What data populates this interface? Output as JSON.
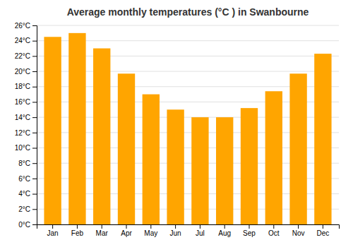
{
  "chart_data": {
    "type": "bar",
    "title": "Average monthly temperatures (°C ) in Swanbourne",
    "categories": [
      "Jan",
      "Feb",
      "Mar",
      "Apr",
      "May",
      "Jun",
      "Jul",
      "Aug",
      "Sep",
      "Oct",
      "Nov",
      "Dec"
    ],
    "values": [
      24.5,
      25.0,
      23.0,
      19.7,
      17.0,
      15.0,
      14.0,
      14.0,
      15.2,
      17.4,
      19.7,
      22.3
    ],
    "color": "#FFA500",
    "ylim": [
      0,
      26
    ],
    "yticks": [
      {
        "value": 0,
        "label": "0°C"
      },
      {
        "value": 2,
        "label": "2°C"
      },
      {
        "value": 4,
        "label": "4°C"
      },
      {
        "value": 6,
        "label": "6°C"
      },
      {
        "value": 8,
        "label": "8°C"
      },
      {
        "value": 10,
        "label": "10°C"
      },
      {
        "value": 12,
        "label": "12°C"
      },
      {
        "value": 14,
        "label": "14°C"
      },
      {
        "value": 16,
        "label": "16°C"
      },
      {
        "value": 18,
        "label": "18°C"
      },
      {
        "value": 20,
        "label": "20°C"
      },
      {
        "value": 22,
        "label": "22°C"
      },
      {
        "value": 24,
        "label": "24°C"
      },
      {
        "value": 26,
        "label": "26°C"
      }
    ],
    "grid": true
  }
}
